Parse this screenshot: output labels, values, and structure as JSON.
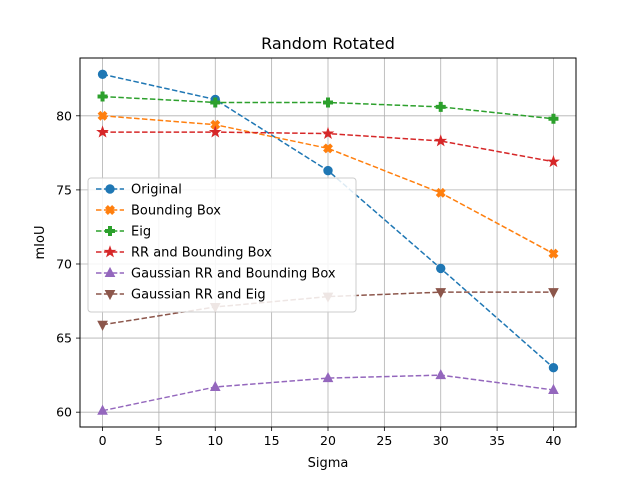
{
  "chart_data": {
    "type": "line",
    "title": "Random Rotated",
    "xlabel": "Sigma",
    "ylabel": "mIoU",
    "x": [
      0,
      10,
      20,
      30,
      40
    ],
    "xlim": [
      -2,
      42
    ],
    "ylim": [
      59.0,
      83.9
    ],
    "xticks": [
      0,
      5,
      10,
      15,
      20,
      25,
      30,
      35,
      40
    ],
    "yticks": [
      60,
      65,
      70,
      75,
      80
    ],
    "grid": true,
    "legend_position": "center-left",
    "series": [
      {
        "name": "Original",
        "color": "#1f77b4",
        "marker": "circle",
        "values": [
          82.8,
          81.1,
          76.3,
          69.7,
          63.0
        ]
      },
      {
        "name": "Bounding Box",
        "color": "#ff7f0e",
        "marker": "x-filled",
        "values": [
          80.0,
          79.4,
          77.8,
          74.8,
          70.7
        ]
      },
      {
        "name": "Eig",
        "color": "#2ca02c",
        "marker": "plus-filled",
        "values": [
          81.3,
          80.9,
          80.9,
          80.6,
          79.8
        ]
      },
      {
        "name": "RR and Bounding Box",
        "color": "#d62728",
        "marker": "star",
        "values": [
          78.9,
          78.9,
          78.8,
          78.3,
          76.9
        ]
      },
      {
        "name": "Gaussian RR and Bounding Box",
        "color": "#9467bd",
        "marker": "triangle-up",
        "values": [
          60.1,
          61.7,
          62.3,
          62.5,
          61.5
        ]
      },
      {
        "name": "Gaussian RR and Eig",
        "color": "#8c564b",
        "marker": "triangle-down",
        "values": [
          65.9,
          67.1,
          67.8,
          68.1,
          68.1
        ]
      }
    ]
  }
}
